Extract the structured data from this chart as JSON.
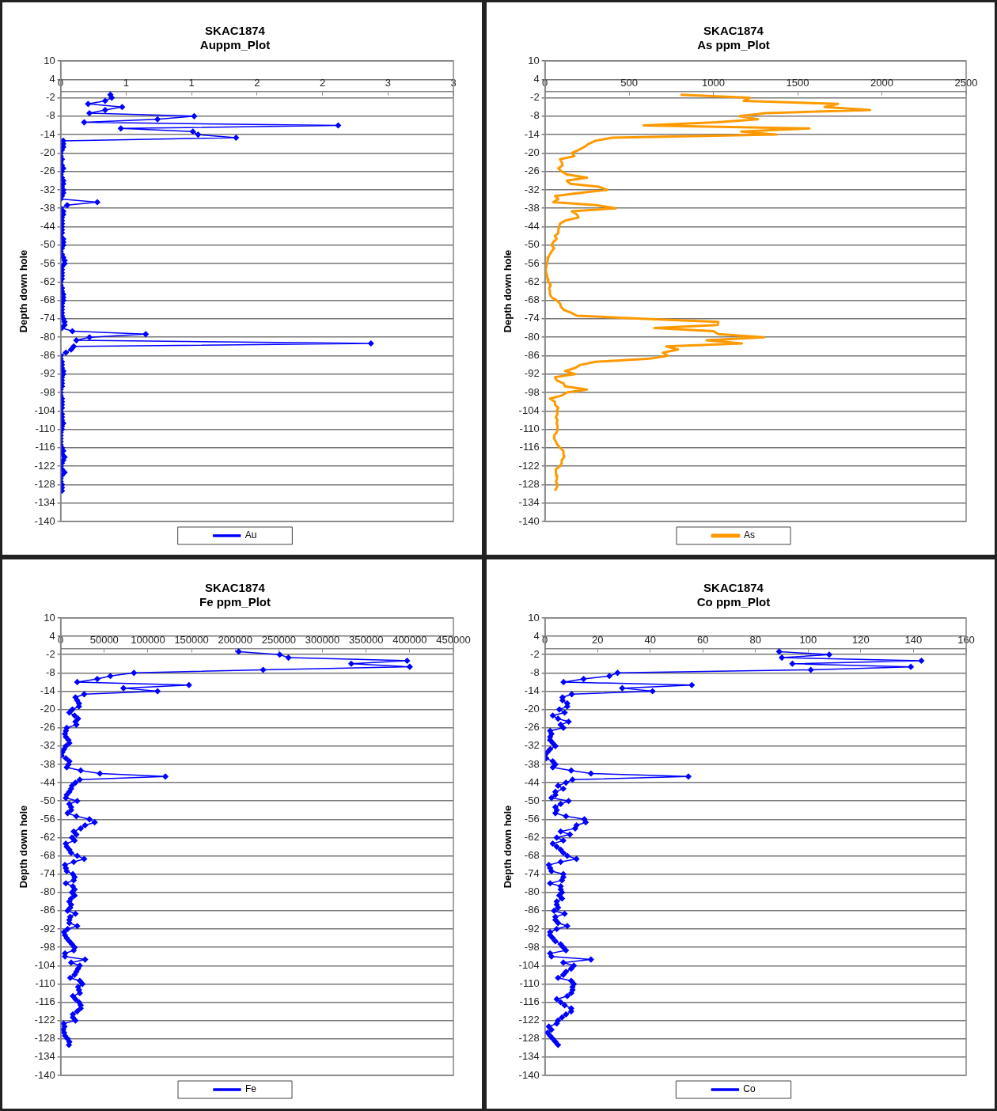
{
  "chart_data": [
    {
      "type": "line",
      "title": "SKAC1874",
      "subtitle": "Auppm_Plot",
      "ylabel": "Depth down hole",
      "xlim": [
        0,
        3
      ],
      "xticks": [
        0,
        {
          "value": 0.5,
          "label": "1"
        },
        1,
        {
          "value": 1.5,
          "label": "2"
        },
        2,
        {
          "value": 2.5,
          "label": "3"
        },
        3
      ],
      "ylim": [
        -140,
        10
      ],
      "yticks": [
        10,
        4,
        -2,
        -8,
        -14,
        -20,
        -26,
        -32,
        -38,
        -44,
        -50,
        -56,
        -62,
        -68,
        -74,
        -80,
        -86,
        -92,
        -98,
        -104,
        -110,
        -116,
        -122,
        -128,
        -134,
        -140
      ],
      "grid": "y",
      "legend": "bottom",
      "marker": "diamond",
      "line_style": "solid",
      "series": [
        {
          "name": "Au",
          "color": "#0000ff",
          "x": [
            0.38,
            0.39,
            0.34,
            0.21,
            0.47,
            0.34,
            0.22,
            1.02,
            0.74,
            0.18,
            2.12,
            0.46,
            1.01,
            1.05,
            1.34,
            0.02,
            0.02,
            0.02,
            0.01,
            0,
            0,
            0.01,
            0,
            0.01,
            0.02,
            0.01,
            0,
            0.01,
            0.02,
            0.02,
            0.01,
            0.02,
            0.02,
            0.01,
            0,
            0.28,
            0.05,
            0,
            0.02,
            0.02,
            0.01,
            0.01,
            0.01,
            0.01,
            0.01,
            0.01,
            0,
            0.02,
            0.02,
            0.02,
            0.01,
            0,
            0.01,
            0.02,
            0.03,
            0.03,
            0.01,
            0.01,
            0.01,
            0.01,
            0.01,
            0,
            0,
            0.01,
            0.01,
            0.02,
            0.02,
            0.02,
            0.01,
            0.01,
            0.01,
            0.01,
            0.01,
            0.02,
            0.03,
            0.03,
            0.01,
            0.09,
            0.65,
            0.22,
            0.12,
            2.37,
            0.1,
            0.08,
            0.04,
            0,
            0,
            0.01,
            0.01,
            0.01,
            0.02,
            0.02,
            0.01,
            0.01,
            0.01,
            0.01,
            0,
            0,
            0,
            0.01,
            0.01,
            0.01,
            0.01,
            0,
            0.01,
            0.01,
            0.01,
            0.02,
            0.01,
            0.01,
            0,
            0,
            0,
            0,
            0,
            0.01,
            0.02,
            0.01,
            0.03,
            0.02,
            0.01,
            0,
            0.01,
            0.03,
            0.01,
            0,
            0,
            0.01,
            0.01,
            0.01
          ],
          "values": [
            -1,
            -2,
            -3,
            -4,
            -5,
            -6,
            -7,
            -8,
            -9,
            -10,
            -11,
            -12,
            -13,
            -14,
            -15,
            -16,
            -17,
            -18,
            -19,
            -20,
            -21,
            -22,
            -23,
            -24,
            -25,
            -26,
            -27,
            -28,
            -29,
            -30,
            -31,
            -32,
            -33,
            -34,
            -35,
            -36,
            -37,
            -38,
            -39,
            -40,
            -41,
            -42,
            -43,
            -44,
            -45,
            -46,
            -47,
            -48,
            -49,
            -50,
            -51,
            -52,
            -53,
            -54,
            -55,
            -56,
            -57,
            -58,
            -59,
            -60,
            -61,
            -62,
            -63,
            -64,
            -65,
            -66,
            -67,
            -68,
            -69,
            -70,
            -71,
            -72,
            -73,
            -74,
            -75,
            -76,
            -77,
            -78,
            -79,
            -80,
            -81,
            -82,
            -83,
            -84,
            -85,
            -86,
            -87,
            -88,
            -89,
            -90,
            -91,
            -92,
            -93,
            -94,
            -95,
            -96,
            -97,
            -98,
            -99,
            -100,
            -101,
            -102,
            -103,
            -104,
            -105,
            -106,
            -107,
            -108,
            -109,
            -110,
            -111,
            -112,
            -113,
            -114,
            -115,
            -116,
            -117,
            -118,
            -119,
            -120,
            -121,
            -122,
            -123,
            -124,
            -125,
            -126,
            -127,
            -128,
            -129,
            -130
          ]
        }
      ]
    },
    {
      "type": "line",
      "title": "SKAC1874",
      "subtitle": "As ppm_Plot",
      "ylabel": "Depth down hole",
      "xlim": [
        0,
        2500
      ],
      "xticks": [
        0,
        500,
        1000,
        1500,
        2000,
        2500
      ],
      "ylim": [
        -140,
        10
      ],
      "yticks": [
        10,
        4,
        -2,
        -8,
        -14,
        -20,
        -26,
        -32,
        -38,
        -44,
        -50,
        -56,
        -62,
        -68,
        -74,
        -80,
        -86,
        -92,
        -98,
        -104,
        -110,
        -116,
        -122,
        -128,
        -134,
        -140
      ],
      "grid": "y",
      "legend": "bottom",
      "marker": "none",
      "line_style": "solid",
      "series": [
        {
          "name": "As",
          "color": "#ff9900",
          "x": [
            805,
            1215,
            1180,
            1740,
            1660,
            1930,
            1310,
            1155,
            1265,
            1020,
            585,
            1570,
            1165,
            1375,
            400,
            300,
            260,
            235,
            200,
            160,
            175,
            90,
            100,
            105,
            80,
            100,
            130,
            250,
            130,
            150,
            320,
            370,
            210,
            60,
            80,
            50,
            310,
            420,
            160,
            190,
            200,
            120,
            90,
            85,
            80,
            80,
            60,
            70,
            50,
            40,
            55,
            40,
            30,
            20,
            16,
            13,
            8,
            4,
            8,
            13,
            16,
            20,
            35,
            25,
            30,
            30,
            40,
            70,
            90,
            95,
            110,
            155,
            190,
            600,
            1030,
            1025,
            650,
            1000,
            1030,
            1300,
            960,
            1170,
            720,
            790,
            700,
            730,
            620,
            300,
            210,
            180,
            120,
            180,
            60,
            70,
            110,
            120,
            250,
            130,
            100,
            30,
            60,
            60,
            80,
            70,
            75,
            65,
            75,
            70,
            75,
            75,
            70,
            55,
            55,
            65,
            75,
            90,
            110,
            110,
            115,
            100,
            100,
            90,
            65,
            65,
            68,
            72,
            66,
            75,
            70,
            60
          ],
          "values": [
            -1,
            -2,
            -3,
            -4,
            -5,
            -6,
            -7,
            -8,
            -9,
            -10,
            -11,
            -12,
            -13,
            -14,
            -15,
            -16,
            -17,
            -18,
            -19,
            -20,
            -21,
            -22,
            -23,
            -24,
            -25,
            -26,
            -27,
            -28,
            -29,
            -30,
            -31,
            -32,
            -33,
            -34,
            -35,
            -36,
            -37,
            -38,
            -39,
            -40,
            -41,
            -42,
            -43,
            -44,
            -45,
            -46,
            -47,
            -48,
            -49,
            -50,
            -51,
            -52,
            -53,
            -54,
            -55,
            -56,
            -57,
            -58,
            -59,
            -60,
            -61,
            -62,
            -63,
            -64,
            -65,
            -66,
            -67,
            -68,
            -69,
            -70,
            -71,
            -72,
            -73,
            -74,
            -75,
            -76,
            -77,
            -78,
            -79,
            -80,
            -81,
            -82,
            -83,
            -84,
            -85,
            -86,
            -87,
            -88,
            -89,
            -90,
            -91,
            -92,
            -93,
            -94,
            -95,
            -96,
            -97,
            -98,
            -99,
            -100,
            -101,
            -102,
            -103,
            -104,
            -105,
            -106,
            -107,
            -108,
            -109,
            -110,
            -111,
            -112,
            -113,
            -114,
            -115,
            -116,
            -117,
            -118,
            -119,
            -120,
            -121,
            -122,
            -123,
            -124,
            -125,
            -126,
            -127,
            -128,
            -129,
            -130
          ]
        }
      ]
    },
    {
      "type": "line",
      "title": "SKAC1874",
      "subtitle": "Fe ppm_Plot",
      "ylabel": "Depth down hole",
      "xlim": [
        0,
        450000
      ],
      "xticks": [
        0,
        50000,
        100000,
        150000,
        200000,
        250000,
        300000,
        350000,
        400000,
        450000
      ],
      "ylim": [
        -140,
        10
      ],
      "yticks": [
        10,
        4,
        -2,
        -8,
        -14,
        -20,
        -26,
        -32,
        -38,
        -44,
        -50,
        -56,
        -62,
        -68,
        -74,
        -80,
        -86,
        -92,
        -98,
        -104,
        -110,
        -116,
        -122,
        -128,
        -134,
        -140
      ],
      "grid": "y",
      "legend": "bottom",
      "marker": "diamond",
      "line_style": "solid",
      "series": [
        {
          "name": "Fe",
          "color": "#0000ff",
          "x": [
            204000,
            251000,
            261000,
            397000,
            333000,
            400000,
            232000,
            84000,
            57000,
            42000,
            19000,
            147000,
            72000,
            111000,
            27000,
            17000,
            19000,
            21000,
            21000,
            13500,
            10000,
            16000,
            20000,
            17000,
            18000,
            7000,
            6000,
            5000,
            6000,
            9000,
            10000,
            6000,
            4000,
            2000,
            1000,
            6000,
            10000,
            9000,
            7000,
            23000,
            45000,
            120000,
            22000,
            17000,
            13000,
            12000,
            10000,
            7000,
            6000,
            19000,
            10000,
            12000,
            12000,
            8000,
            18000,
            33000,
            39000,
            28000,
            23000,
            15000,
            18000,
            13000,
            16000,
            6000,
            7000,
            10000,
            12000,
            19000,
            27000,
            15000,
            5000,
            6000,
            7000,
            14000,
            16000,
            15000,
            6000,
            14000,
            16000,
            13000,
            16000,
            12000,
            10000,
            12000,
            11000,
            8000,
            17000,
            11000,
            10000,
            10000,
            19000,
            8000,
            4000,
            5000,
            7000,
            10000,
            13000,
            16000,
            15000,
            5000,
            5000,
            28000,
            12000,
            22000,
            20000,
            18000,
            16000,
            11000,
            22000,
            25000,
            20000,
            21000,
            22000,
            14000,
            17000,
            21000,
            23000,
            23000,
            19000,
            14000,
            14000,
            17000,
            3500,
            4500,
            3000,
            4000,
            5000,
            8000,
            10000,
            9500
          ],
          "values": [
            -1,
            -2,
            -3,
            -4,
            -5,
            -6,
            -7,
            -8,
            -9,
            -10,
            -11,
            -12,
            -13,
            -14,
            -15,
            -16,
            -17,
            -18,
            -19,
            -20,
            -21,
            -22,
            -23,
            -24,
            -25,
            -26,
            -27,
            -28,
            -29,
            -30,
            -31,
            -32,
            -33,
            -34,
            -35,
            -36,
            -37,
            -38,
            -39,
            -40,
            -41,
            -42,
            -43,
            -44,
            -45,
            -46,
            -47,
            -48,
            -49,
            -50,
            -51,
            -52,
            -53,
            -54,
            -55,
            -56,
            -57,
            -58,
            -59,
            -60,
            -61,
            -62,
            -63,
            -64,
            -65,
            -66,
            -67,
            -68,
            -69,
            -70,
            -71,
            -72,
            -73,
            -74,
            -75,
            -76,
            -77,
            -78,
            -79,
            -80,
            -81,
            -82,
            -83,
            -84,
            -85,
            -86,
            -87,
            -88,
            -89,
            -90,
            -91,
            -92,
            -93,
            -94,
            -95,
            -96,
            -97,
            -98,
            -99,
            -100,
            -101,
            -102,
            -103,
            -104,
            -105,
            -106,
            -107,
            -108,
            -109,
            -110,
            -111,
            -112,
            -113,
            -114,
            -115,
            -116,
            -117,
            -118,
            -119,
            -120,
            -121,
            -122,
            -123,
            -124,
            -125,
            -126,
            -127,
            -128,
            -129,
            -130
          ]
        }
      ]
    },
    {
      "type": "line",
      "title": "SKAC1874",
      "subtitle": "Co ppm_Plot",
      "ylabel": "Depth down hole",
      "xlim": [
        0,
        160
      ],
      "xticks": [
        0,
        20,
        40,
        60,
        80,
        100,
        120,
        140,
        160
      ],
      "ylim": [
        -140,
        10
      ],
      "yticks": [
        10,
        4,
        -2,
        -8,
        -14,
        -20,
        -26,
        -32,
        -38,
        -44,
        -50,
        -56,
        -62,
        -68,
        -74,
        -80,
        -86,
        -92,
        -98,
        -104,
        -110,
        -116,
        -122,
        -128,
        -134,
        -140
      ],
      "grid": "y",
      "legend": "bottom",
      "marker": "diamond",
      "line_style": "solid",
      "series": [
        {
          "name": "Co",
          "color": "#0000ff",
          "x": [
            89,
            108,
            90,
            143,
            94,
            139,
            101,
            27.6,
            24.5,
            14.7,
            7.1,
            55.8,
            29.4,
            40.9,
            10.2,
            6.7,
            6.7,
            8.5,
            8.5,
            5.5,
            7.5,
            3,
            5,
            9,
            6,
            7,
            2,
            2.5,
            2,
            2,
            3,
            4,
            2,
            1,
            0,
            0.5,
            3,
            4,
            3,
            10,
            17.5,
            54.5,
            10.5,
            8,
            5,
            7,
            4,
            4,
            2.5,
            9,
            6,
            4,
            4.5,
            4,
            8,
            15,
            15.5,
            12,
            11.5,
            6,
            9.5,
            4.5,
            7,
            3,
            4.5,
            6,
            7,
            8.5,
            12,
            6,
            1.5,
            2,
            2.5,
            7,
            7,
            6.5,
            2,
            6,
            6,
            6.5,
            5.5,
            6.5,
            4.5,
            4.5,
            5,
            3.5,
            7.5,
            4,
            4,
            5,
            8.5,
            4.5,
            2,
            2,
            3,
            4,
            6,
            7,
            8,
            2,
            2.5,
            17.5,
            7,
            11,
            10,
            8,
            7,
            5,
            10,
            11,
            10.5,
            10.5,
            10,
            8.5,
            4.5,
            6,
            7.5,
            10,
            10,
            8,
            6.5,
            5,
            4.5,
            1.5,
            2.5,
            1,
            2,
            3,
            4,
            5
          ],
          "values": [
            -1,
            -2,
            -3,
            -4,
            -5,
            -6,
            -7,
            -8,
            -9,
            -10,
            -11,
            -12,
            -13,
            -14,
            -15,
            -16,
            -17,
            -18,
            -19,
            -20,
            -21,
            -22,
            -23,
            -24,
            -25,
            -26,
            -27,
            -28,
            -29,
            -30,
            -31,
            -32,
            -33,
            -34,
            -35,
            -36,
            -37,
            -38,
            -39,
            -40,
            -41,
            -42,
            -43,
            -44,
            -45,
            -46,
            -47,
            -48,
            -49,
            -50,
            -51,
            -52,
            -53,
            -54,
            -55,
            -56,
            -57,
            -58,
            -59,
            -60,
            -61,
            -62,
            -63,
            -64,
            -65,
            -66,
            -67,
            -68,
            -69,
            -70,
            -71,
            -72,
            -73,
            -74,
            -75,
            -76,
            -77,
            -78,
            -79,
            -80,
            -81,
            -82,
            -83,
            -84,
            -85,
            -86,
            -87,
            -88,
            -89,
            -90,
            -91,
            -92,
            -93,
            -94,
            -95,
            -96,
            -97,
            -98,
            -99,
            -100,
            -101,
            -102,
            -103,
            -104,
            -105,
            -106,
            -107,
            -108,
            -109,
            -110,
            -111,
            -112,
            -113,
            -114,
            -115,
            -116,
            -117,
            -118,
            -119,
            -120,
            -121,
            -122,
            -123,
            -124,
            -125,
            -126,
            -127,
            -128,
            -129,
            -130
          ]
        }
      ]
    }
  ]
}
